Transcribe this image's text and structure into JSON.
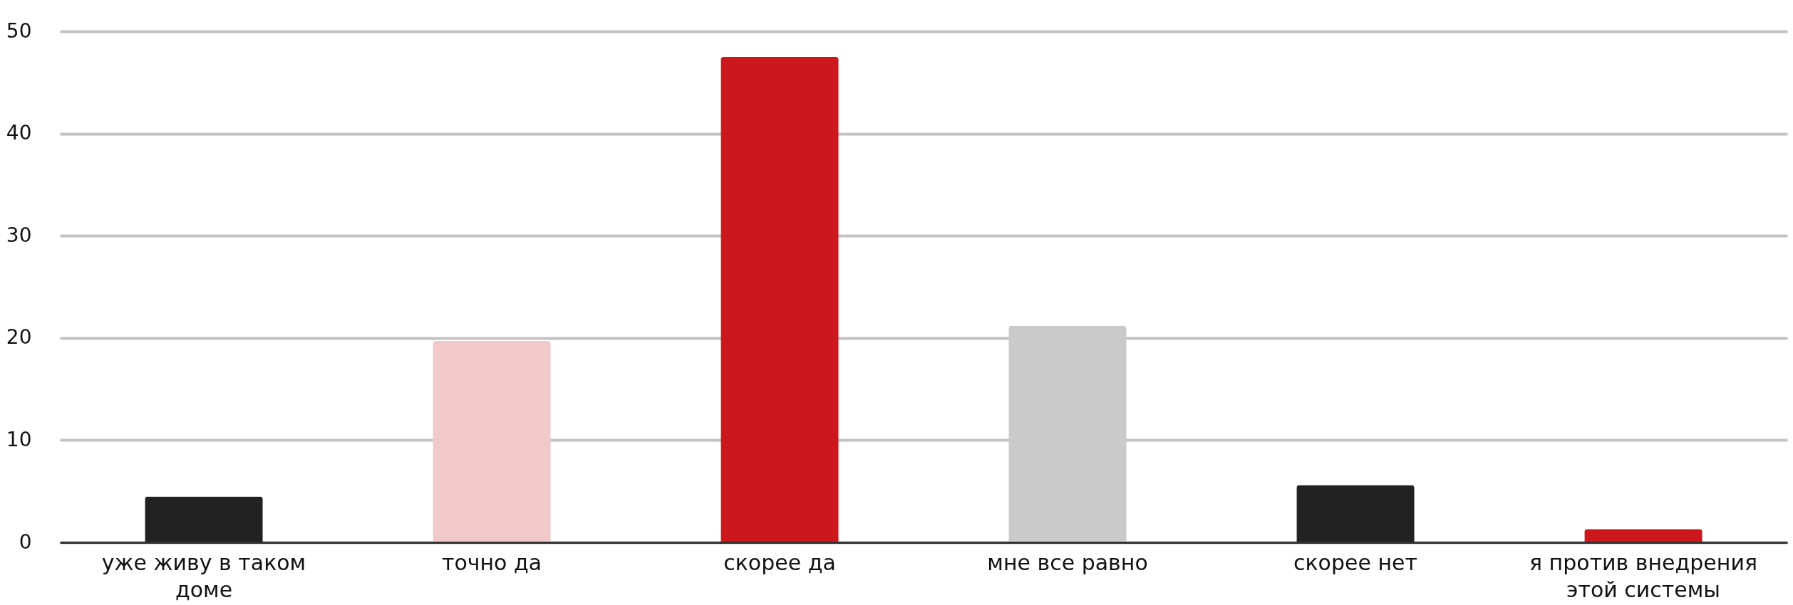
{
  "chart_data": {
    "type": "bar",
    "categories": [
      "уже живу в таком доме",
      "точно да",
      "скорее да",
      "мне все равно",
      "скорее нет",
      "я против внедрения этой системы"
    ],
    "values": [
      4.5,
      19.7,
      47.5,
      21.2,
      5.6,
      1.3
    ],
    "colors": [
      "#222222",
      "#f2c9c9",
      "#cc171c",
      "#cacaca",
      "#222222",
      "#cc171c"
    ],
    "ylim": [
      0,
      50
    ],
    "yticks": [
      0,
      10,
      20,
      30,
      40,
      50
    ],
    "grid": "y"
  }
}
